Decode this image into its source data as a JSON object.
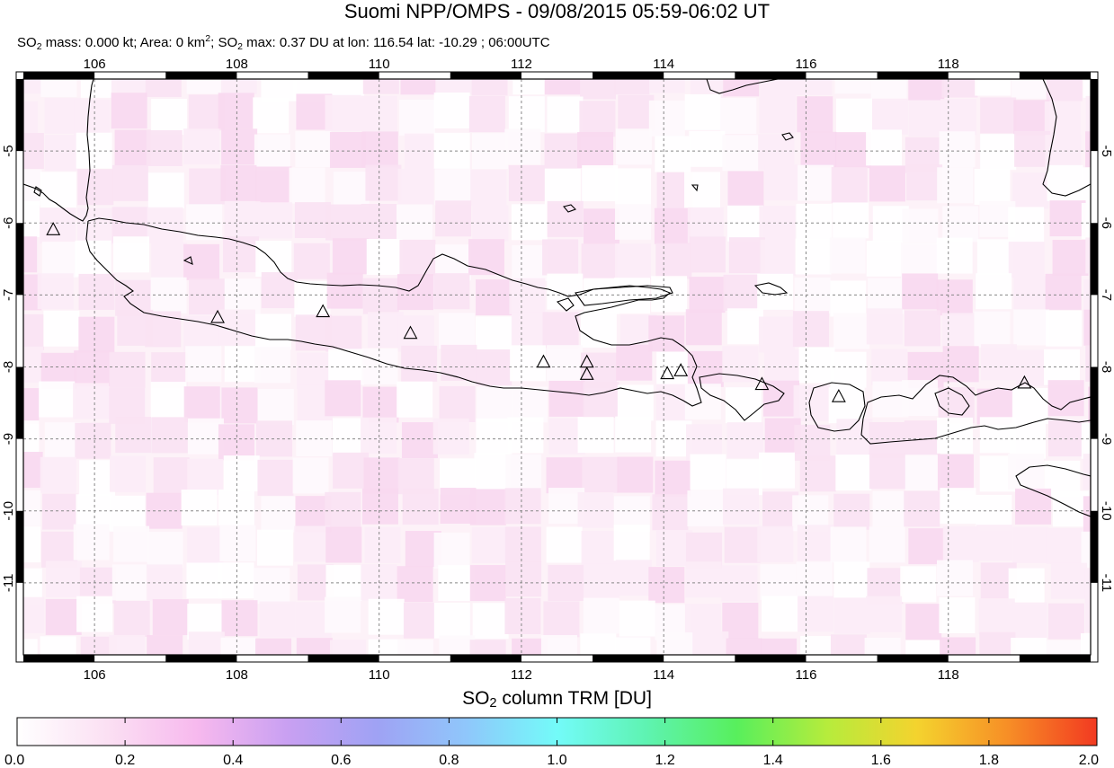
{
  "title": "Suomi NPP/OMPS - 09/08/2015 05:59-06:02 UT",
  "subtitle": {
    "so2_label": "SO",
    "so2_sub": "2",
    "mass_text": " mass: 0.000 kt; Area: 0 km",
    "area_sup": "2",
    "sep": "; SO",
    "so2_sub_2": "2",
    "max_text": " max: 0.37 DU at lon: 116.54 lat: -10.29 ; 06:00UTC"
  },
  "map": {
    "lon_range": [
      105.0,
      120.0
    ],
    "lat_range": [
      -12.0,
      -4.0
    ],
    "lon_ticks": [
      "106",
      "108",
      "110",
      "112",
      "114",
      "116",
      "118"
    ],
    "lat_ticks": [
      "-5",
      "-6",
      "-7",
      "-8",
      "-9",
      "-10",
      "-11"
    ],
    "grid": true,
    "volcanoes": [
      {
        "lon": 105.42,
        "lat": -6.1
      },
      {
        "lon": 107.73,
        "lat": -7.32
      },
      {
        "lon": 109.21,
        "lat": -7.24
      },
      {
        "lon": 110.44,
        "lat": -7.54
      },
      {
        "lon": 112.31,
        "lat": -7.94
      },
      {
        "lon": 112.92,
        "lat": -7.94
      },
      {
        "lon": 112.92,
        "lat": -8.11
      },
      {
        "lon": 114.05,
        "lat": -8.1
      },
      {
        "lon": 114.24,
        "lat": -8.06
      },
      {
        "lon": 115.38,
        "lat": -8.25
      },
      {
        "lon": 116.46,
        "lat": -8.42
      },
      {
        "lon": 119.07,
        "lat": -8.23
      }
    ]
  },
  "colorbar": {
    "title_prefix": "SO",
    "title_sub": "2",
    "title_suffix": " column TRM [DU]",
    "ticks": [
      "0.0",
      "0.2",
      "0.4",
      "0.6",
      "0.8",
      "1.0",
      "1.2",
      "1.4",
      "1.6",
      "1.8",
      "2.0"
    ],
    "range": [
      0.0,
      2.0
    ],
    "colors": [
      "#ffffff",
      "#fbe0f3",
      "#f7b9ee",
      "#c9a0f2",
      "#9fa2f4",
      "#8fc7fb",
      "#73fbf9",
      "#5ef3b1",
      "#58ef5c",
      "#b6ec3c",
      "#f4d32e",
      "#f78f26",
      "#f23a21"
    ]
  }
}
